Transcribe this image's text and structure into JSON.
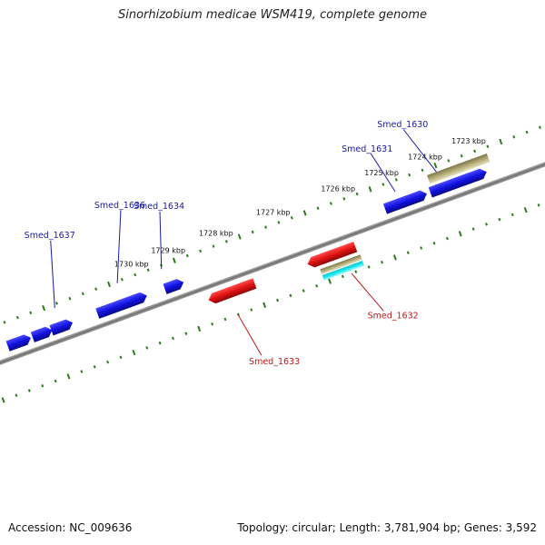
{
  "title": "Sinorhizobium medicae WSM419, complete genome",
  "footer": {
    "accession": "Accession: NC_009636",
    "summary": "Topology: circular; Length: 3,781,904 bp; Genes: 3,592"
  },
  "ticks": {
    "labels": [
      "1723 kbp",
      "1724 kbp",
      "1725 kbp",
      "1726 kbp",
      "1727 kbp",
      "1728 kbp",
      "1729 kbp",
      "1730 kbp"
    ]
  },
  "colors": {
    "forward_gene": "#1212e0",
    "reverse_gene": "#e01212",
    "rna_gene": "#b5ad78",
    "misc_feature": "#19e8f0",
    "backbone": "#808080",
    "tick": "#2c7a1c"
  },
  "genes": {
    "smed_1630": "Smed_1630",
    "smed_1631": "Smed_1631",
    "smed_1632": "Smed_1632",
    "smed_1633": "Smed_1633",
    "smed_1634": "Smed_1634",
    "smed_1636": "Smed_1636",
    "smed_1637": "Smed_1637"
  }
}
